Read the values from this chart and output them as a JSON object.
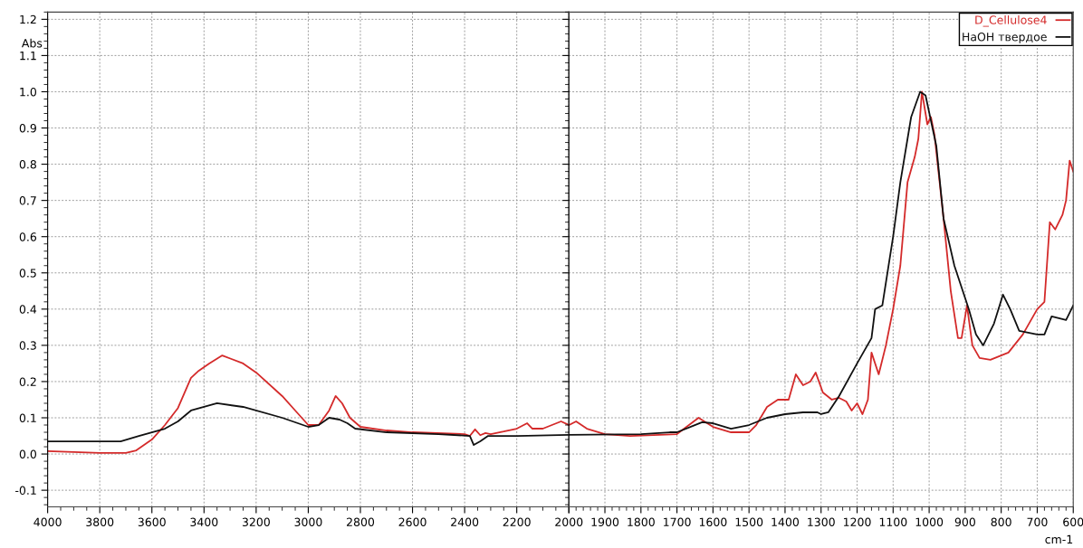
{
  "chart_data": [
    {
      "type": "line",
      "ylabel": "Abs",
      "xlim": [
        4000,
        2000
      ],
      "ylim": [
        -0.146,
        1.22
      ],
      "xticks": [
        4000,
        3800,
        3600,
        3400,
        3200,
        3000,
        2800,
        2600,
        2400,
        2200,
        {
          "value": 2000,
          "label": null
        }
      ],
      "yticks": [
        -0.1,
        {
          "value": 0,
          "label": "0.0"
        },
        0.1,
        0.2,
        0.3,
        0.4,
        0.5,
        0.6,
        0.7,
        0.8,
        0.9,
        {
          "value": 1,
          "label": "1.0"
        },
        1.1,
        1.2
      ],
      "grid": true,
      "legend": false,
      "series": [
        {
          "color": "#d42a2a",
          "x": [
            4000,
            3800,
            3700,
            3660,
            3600,
            3550,
            3500,
            3450,
            3420,
            3380,
            3330,
            3250,
            3200,
            3100,
            3050,
            3000,
            2960,
            2920,
            2895,
            2870,
            2840,
            2800,
            2700,
            2600,
            2400,
            2380,
            2360,
            2340,
            2320,
            2300,
            2250,
            2200,
            2160,
            2140,
            2100,
            2030,
            2000
          ],
          "values": [
            0.008,
            0.003,
            0.003,
            0.01,
            0.04,
            0.08,
            0.127,
            0.21,
            0.23,
            0.25,
            0.272,
            0.25,
            0.225,
            0.16,
            0.12,
            0.08,
            0.08,
            0.12,
            0.16,
            0.14,
            0.1,
            0.075,
            0.065,
            0.06,
            0.055,
            0.05,
            0.068,
            0.052,
            0.058,
            0.055,
            0.062,
            0.07,
            0.085,
            0.07,
            0.07,
            0.09,
            0.08
          ]
        },
        {
          "color": "#111111",
          "x": [
            4000,
            3800,
            3720,
            3650,
            3550,
            3500,
            3450,
            3350,
            3250,
            3100,
            3000,
            2960,
            2920,
            2880,
            2850,
            2820,
            2700,
            2500,
            2380,
            2365,
            2340,
            2310,
            2200,
            2000
          ],
          "values": [
            0.035,
            0.035,
            0.035,
            0.05,
            0.07,
            0.09,
            0.12,
            0.14,
            0.13,
            0.1,
            0.075,
            0.08,
            0.1,
            0.095,
            0.085,
            0.07,
            0.06,
            0.055,
            0.05,
            0.025,
            0.035,
            0.05,
            0.05,
            0.053
          ]
        }
      ]
    },
    {
      "type": "line",
      "xlabel": "cm-1",
      "xlim": [
        2000,
        600
      ],
      "ylim": [
        -0.146,
        1.22
      ],
      "xticks": [
        2000,
        1900,
        1800,
        1700,
        1600,
        1500,
        1400,
        1300,
        1200,
        1100,
        1000,
        900,
        800,
        700,
        600
      ],
      "yticks": [
        -0.1,
        0,
        0.1,
        0.2,
        0.3,
        0.4,
        0.5,
        0.6,
        0.7,
        0.8,
        0.9,
        1,
        1.1,
        1.2
      ],
      "tick_labels": "x",
      "grid": true,
      "legend": "top right",
      "series": [
        {
          "name": "D_Cellulose4",
          "color": "#d42a2a",
          "x": [
            2000,
            1980,
            1950,
            1900,
            1830,
            1700,
            1680,
            1640,
            1600,
            1550,
            1500,
            1480,
            1450,
            1420,
            1390,
            1370,
            1350,
            1330,
            1315,
            1295,
            1270,
            1250,
            1230,
            1215,
            1200,
            1185,
            1170,
            1160,
            1140,
            1120,
            1100,
            1080,
            1060,
            1040,
            1030,
            1020,
            1005,
            995,
            985,
            960,
            940,
            920,
            910,
            895,
            880,
            860,
            830,
            780,
            740,
            700,
            680,
            665,
            650,
            630,
            620,
            610,
            600
          ],
          "values": [
            0.08,
            0.09,
            0.07,
            0.055,
            0.05,
            0.055,
            0.07,
            0.1,
            0.075,
            0.06,
            0.06,
            0.08,
            0.13,
            0.15,
            0.15,
            0.22,
            0.19,
            0.2,
            0.225,
            0.17,
            0.15,
            0.155,
            0.145,
            0.12,
            0.14,
            0.11,
            0.15,
            0.28,
            0.22,
            0.3,
            0.4,
            0.52,
            0.75,
            0.82,
            0.87,
            1.0,
            0.91,
            0.93,
            0.88,
            0.65,
            0.45,
            0.32,
            0.32,
            0.41,
            0.3,
            0.265,
            0.26,
            0.28,
            0.33,
            0.4,
            0.42,
            0.64,
            0.62,
            0.66,
            0.7,
            0.81,
            0.78
          ]
        },
        {
          "name": "НаОН твердое",
          "color": "#111111",
          "x": [
            2000,
            1800,
            1720,
            1700,
            1630,
            1600,
            1550,
            1500,
            1450,
            1400,
            1350,
            1310,
            1300,
            1280,
            1250,
            1200,
            1160,
            1150,
            1130,
            1100,
            1080,
            1050,
            1025,
            1010,
            980,
            960,
            930,
            900,
            890,
            870,
            850,
            820,
            795,
            775,
            750,
            700,
            680,
            660,
            640,
            620,
            610,
            600
          ],
          "values": [
            0.053,
            0.055,
            0.06,
            0.06,
            0.088,
            0.085,
            0.07,
            0.08,
            0.1,
            0.11,
            0.115,
            0.115,
            0.11,
            0.115,
            0.16,
            0.25,
            0.32,
            0.4,
            0.41,
            0.6,
            0.75,
            0.93,
            1.0,
            0.99,
            0.85,
            0.65,
            0.52,
            0.43,
            0.4,
            0.33,
            0.3,
            0.36,
            0.44,
            0.4,
            0.34,
            0.33,
            0.33,
            0.38,
            0.375,
            0.37,
            0.39,
            0.41
          ]
        }
      ]
    }
  ]
}
